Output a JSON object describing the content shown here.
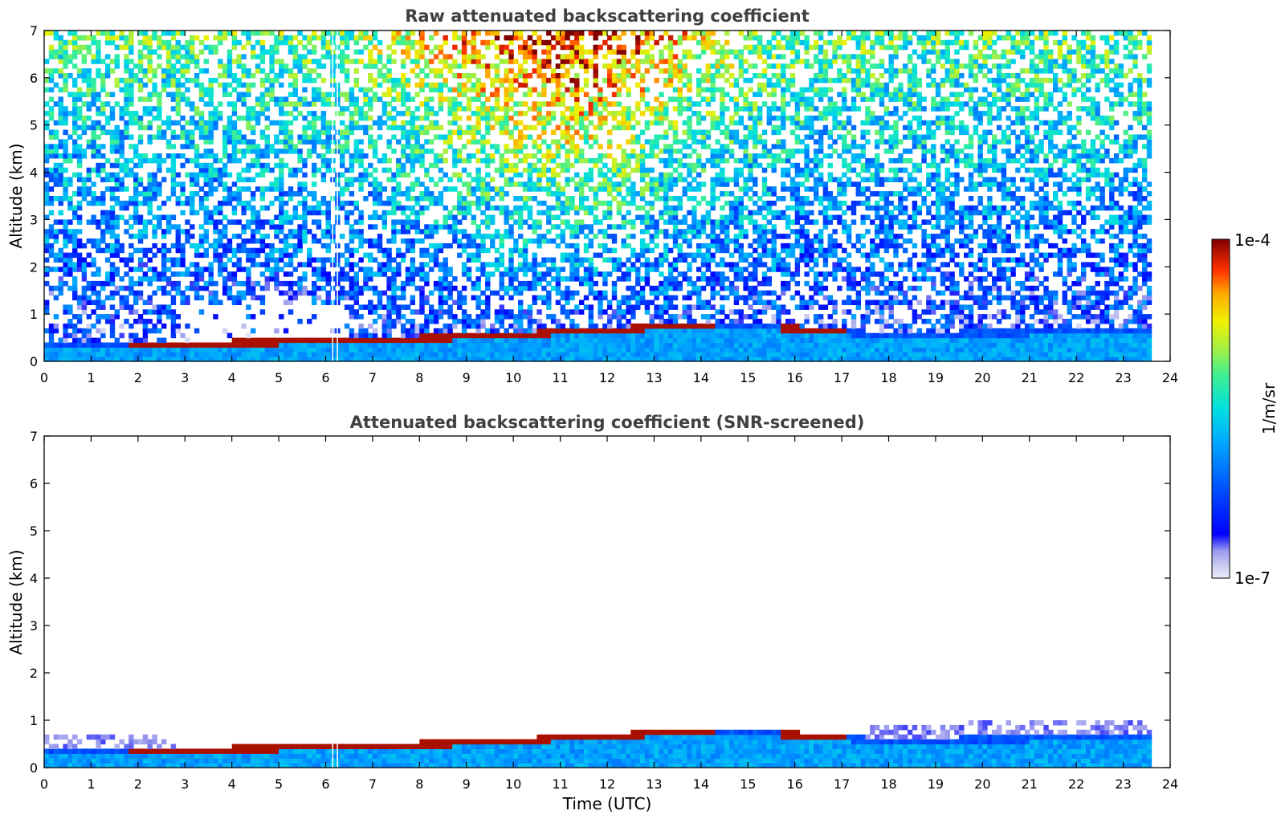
{
  "chart_data": [
    {
      "type": "heatmap",
      "title": "Raw attenuated backscattering coefficient",
      "xlabel": "",
      "ylabel": "Altitude (km)",
      "xlim": [
        0,
        24
      ],
      "ylim": [
        0,
        7
      ],
      "x_ticks": [
        "0",
        "1",
        "2",
        "3",
        "4",
        "5",
        "6",
        "7",
        "8",
        "9",
        "10",
        "11",
        "12",
        "13",
        "14",
        "15",
        "16",
        "17",
        "18",
        "19",
        "20",
        "21",
        "22",
        "23",
        "24"
      ],
      "y_ticks": [
        "0",
        "1",
        "2",
        "3",
        "4",
        "5",
        "6",
        "7"
      ],
      "data_end_hour": 23.6,
      "layer_top_km": [
        {
          "t": 0.0,
          "z": 0.42
        },
        {
          "t": 1.0,
          "z": 0.45
        },
        {
          "t": 2.0,
          "z": 0.42
        },
        {
          "t": 3.0,
          "z": 0.44
        },
        {
          "t": 4.0,
          "z": 0.45
        },
        {
          "t": 5.0,
          "z": 0.47
        },
        {
          "t": 6.0,
          "z": 0.55
        },
        {
          "t": 7.0,
          "z": 0.52
        },
        {
          "t": 8.0,
          "z": 0.55
        },
        {
          "t": 9.0,
          "z": 0.58
        },
        {
          "t": 10.0,
          "z": 0.62
        },
        {
          "t": 11.0,
          "z": 0.68
        },
        {
          "t": 12.0,
          "z": 0.72
        },
        {
          "t": 13.0,
          "z": 0.78
        },
        {
          "t": 14.0,
          "z": 0.82
        },
        {
          "t": 15.0,
          "z": 0.8
        },
        {
          "t": 16.0,
          "z": 0.76
        },
        {
          "t": 17.0,
          "z": 0.68
        },
        {
          "t": 18.0,
          "z": 0.62
        },
        {
          "t": 19.0,
          "z": 0.64
        },
        {
          "t": 20.0,
          "z": 0.66
        },
        {
          "t": 21.0,
          "z": 0.67
        },
        {
          "t": 22.0,
          "z": 0.68
        },
        {
          "t": 23.6,
          "z": 0.68
        }
      ]
    },
    {
      "type": "heatmap",
      "title": "Attenuated backscattering coefficient (SNR-screened)",
      "xlabel": "Time (UTC)",
      "ylabel": "Altitude (km)",
      "xlim": [
        0,
        24
      ],
      "ylim": [
        0,
        7
      ],
      "x_ticks": [
        "0",
        "1",
        "2",
        "3",
        "4",
        "5",
        "6",
        "7",
        "8",
        "9",
        "10",
        "11",
        "12",
        "13",
        "14",
        "15",
        "16",
        "17",
        "18",
        "19",
        "20",
        "21",
        "22",
        "23",
        "24"
      ],
      "y_ticks": [
        "0",
        "1",
        "2",
        "3",
        "4",
        "5",
        "6",
        "7"
      ],
      "data_end_hour": 23.6
    }
  ],
  "colorbar": {
    "label": "1/m/sr",
    "max_label": "1e-4",
    "min_label": "1e-7",
    "colormap": [
      "#e8e8f8",
      "#c8c8f0",
      "#9a9af0",
      "#0000ff",
      "#0050ff",
      "#00a0ff",
      "#00e0e8",
      "#30f0a0",
      "#a0f040",
      "#f0f000",
      "#ffb000",
      "#ff5000",
      "#e00000",
      "#800000"
    ]
  }
}
